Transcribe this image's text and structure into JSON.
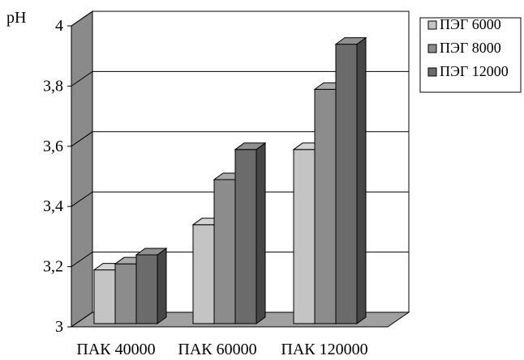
{
  "chart_data": {
    "type": "bar",
    "title": "",
    "xlabel": "",
    "ylabel": "pH",
    "ylim": [
      3,
      4
    ],
    "yticks": [
      "3",
      "3,2",
      "3,4",
      "3,6",
      "3,8",
      "4"
    ],
    "categories": [
      "ПАК 40000",
      "ПАК 60000",
      "ПАК 120000"
    ],
    "series": [
      {
        "name": "ПЭГ 6000",
        "values": [
          3.2,
          3.35,
          3.6
        ],
        "color": "#c4c4c4"
      },
      {
        "name": "ПЭГ 8000",
        "values": [
          3.22,
          3.5,
          3.8
        ],
        "color": "#8c8c8c"
      },
      {
        "name": "ПЭГ 12000",
        "values": [
          3.25,
          3.6,
          3.95
        ],
        "color": "#6b6b6b"
      }
    ],
    "grid": true,
    "legend_position": "right",
    "style": "3d-clustered-bar"
  }
}
